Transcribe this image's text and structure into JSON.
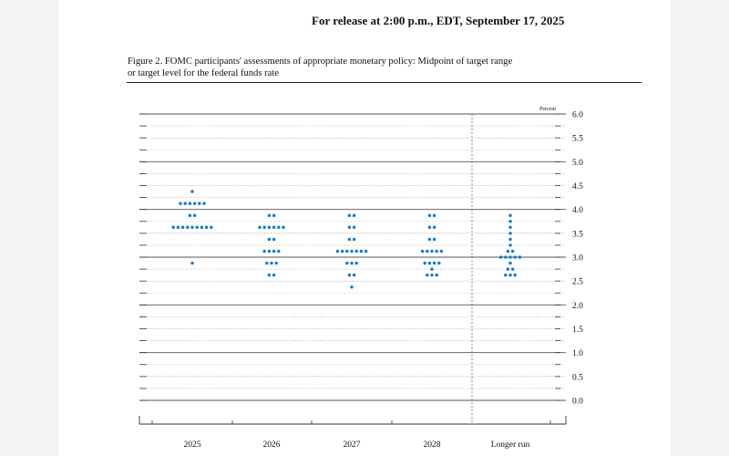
{
  "header": {
    "release": "For release at 2:00 p.m., EDT, September 17, 2025"
  },
  "figure": {
    "caption_line1": "Figure 2. FOMC participants' assessments of appropriate monetary policy: Midpoint of target range",
    "caption_line2": "or target level for the federal funds rate"
  },
  "chart_data": {
    "type": "scatter",
    "subtype": "dot-plot",
    "ylabel": "Percent",
    "ylim": [
      0,
      6
    ],
    "yticks": [
      "6.0",
      "5.5",
      "5.0",
      "4.5",
      "4.0",
      "3.5",
      "3.0",
      "2.5",
      "2.0",
      "1.5",
      "1.0",
      "0.5",
      "0.0"
    ],
    "categories": [
      "2025",
      "2026",
      "2027",
      "2028",
      "Longer run"
    ],
    "grid": true,
    "dot_color": "#1a7dbf",
    "columns": [
      {
        "category": "2025",
        "dots": [
          {
            "y": 4.375,
            "n": 1
          },
          {
            "y": 4.125,
            "n": 6
          },
          {
            "y": 3.875,
            "n": 2
          },
          {
            "y": 3.625,
            "n": 9
          },
          {
            "y": 2.875,
            "n": 1
          }
        ]
      },
      {
        "category": "2026",
        "dots": [
          {
            "y": 3.875,
            "n": 2
          },
          {
            "y": 3.625,
            "n": 6
          },
          {
            "y": 3.375,
            "n": 2
          },
          {
            "y": 3.125,
            "n": 4
          },
          {
            "y": 2.875,
            "n": 3
          },
          {
            "y": 2.625,
            "n": 2
          }
        ]
      },
      {
        "category": "2027",
        "dots": [
          {
            "y": 3.875,
            "n": 2
          },
          {
            "y": 3.625,
            "n": 2
          },
          {
            "y": 3.375,
            "n": 2
          },
          {
            "y": 3.125,
            "n": 7
          },
          {
            "y": 2.875,
            "n": 3
          },
          {
            "y": 2.625,
            "n": 2
          },
          {
            "y": 2.375,
            "n": 1
          }
        ]
      },
      {
        "category": "2028",
        "dots": [
          {
            "y": 3.875,
            "n": 2
          },
          {
            "y": 3.625,
            "n": 2
          },
          {
            "y": 3.375,
            "n": 2
          },
          {
            "y": 3.125,
            "n": 5
          },
          {
            "y": 2.875,
            "n": 4
          },
          {
            "y": 2.75,
            "n": 1
          },
          {
            "y": 2.625,
            "n": 3
          }
        ]
      },
      {
        "category": "Longer run",
        "dots": [
          {
            "y": 3.875,
            "n": 1
          },
          {
            "y": 3.75,
            "n": 1
          },
          {
            "y": 3.625,
            "n": 1
          },
          {
            "y": 3.5,
            "n": 1
          },
          {
            "y": 3.375,
            "n": 1
          },
          {
            "y": 3.25,
            "n": 1
          },
          {
            "y": 3.125,
            "n": 2
          },
          {
            "y": 3.0,
            "n": 5
          },
          {
            "y": 2.875,
            "n": 1
          },
          {
            "y": 2.75,
            "n": 2
          },
          {
            "y": 2.625,
            "n": 3
          }
        ]
      }
    ]
  }
}
